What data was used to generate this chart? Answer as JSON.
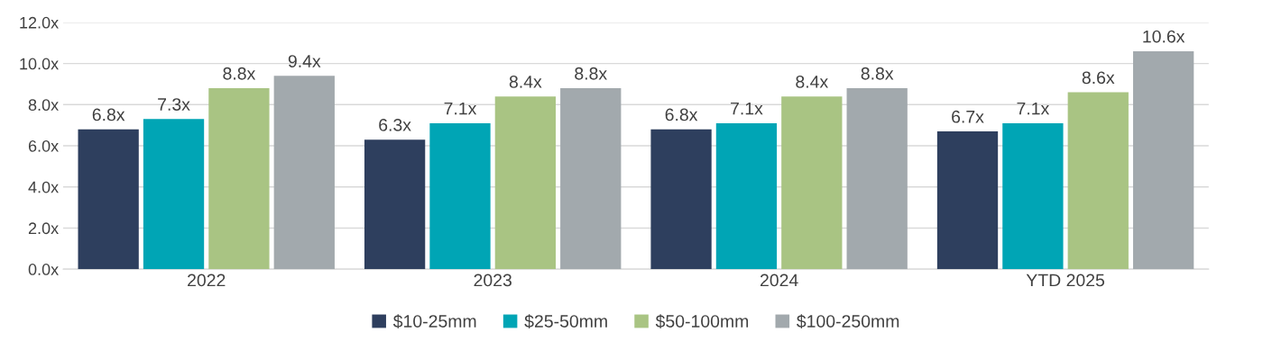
{
  "chart_data": {
    "type": "bar",
    "categories": [
      "2022",
      "2023",
      "2024",
      "YTD 2025"
    ],
    "series": [
      {
        "name": "$10-25mm",
        "color": "#2e3f5e",
        "values": [
          6.8,
          6.3,
          6.8,
          6.7
        ],
        "value_labels": [
          "6.8x",
          "6.3x",
          "6.8x",
          "6.7x"
        ]
      },
      {
        "name": "$25-50mm",
        "color": "#00a5b5",
        "values": [
          7.3,
          7.1,
          7.1,
          7.1
        ],
        "value_labels": [
          "7.3x",
          "7.1x",
          "7.1x",
          "7.1x"
        ]
      },
      {
        "name": "$50-100mm",
        "color": "#a9c483",
        "values": [
          8.8,
          8.4,
          8.4,
          8.6
        ],
        "value_labels": [
          "8.8x",
          "8.4x",
          "8.4x",
          "8.6x"
        ]
      },
      {
        "name": "$100-250mm",
        "color": "#a2a9ad",
        "values": [
          9.4,
          8.8,
          8.8,
          10.6
        ],
        "value_labels": [
          "9.4x",
          "8.8x",
          "8.8x",
          "10.6x"
        ]
      }
    ],
    "ylim": [
      0,
      12
    ],
    "yticks": [
      {
        "value": 0,
        "label": "0.0x"
      },
      {
        "value": 2,
        "label": "2.0x"
      },
      {
        "value": 4,
        "label": "4.0x"
      },
      {
        "value": 6,
        "label": "6.0x"
      },
      {
        "value": 8,
        "label": "8.0x"
      },
      {
        "value": 10,
        "label": "10.0x"
      },
      {
        "value": 12,
        "label": "12.0x"
      }
    ],
    "grid": "y",
    "legend": "bottom"
  }
}
